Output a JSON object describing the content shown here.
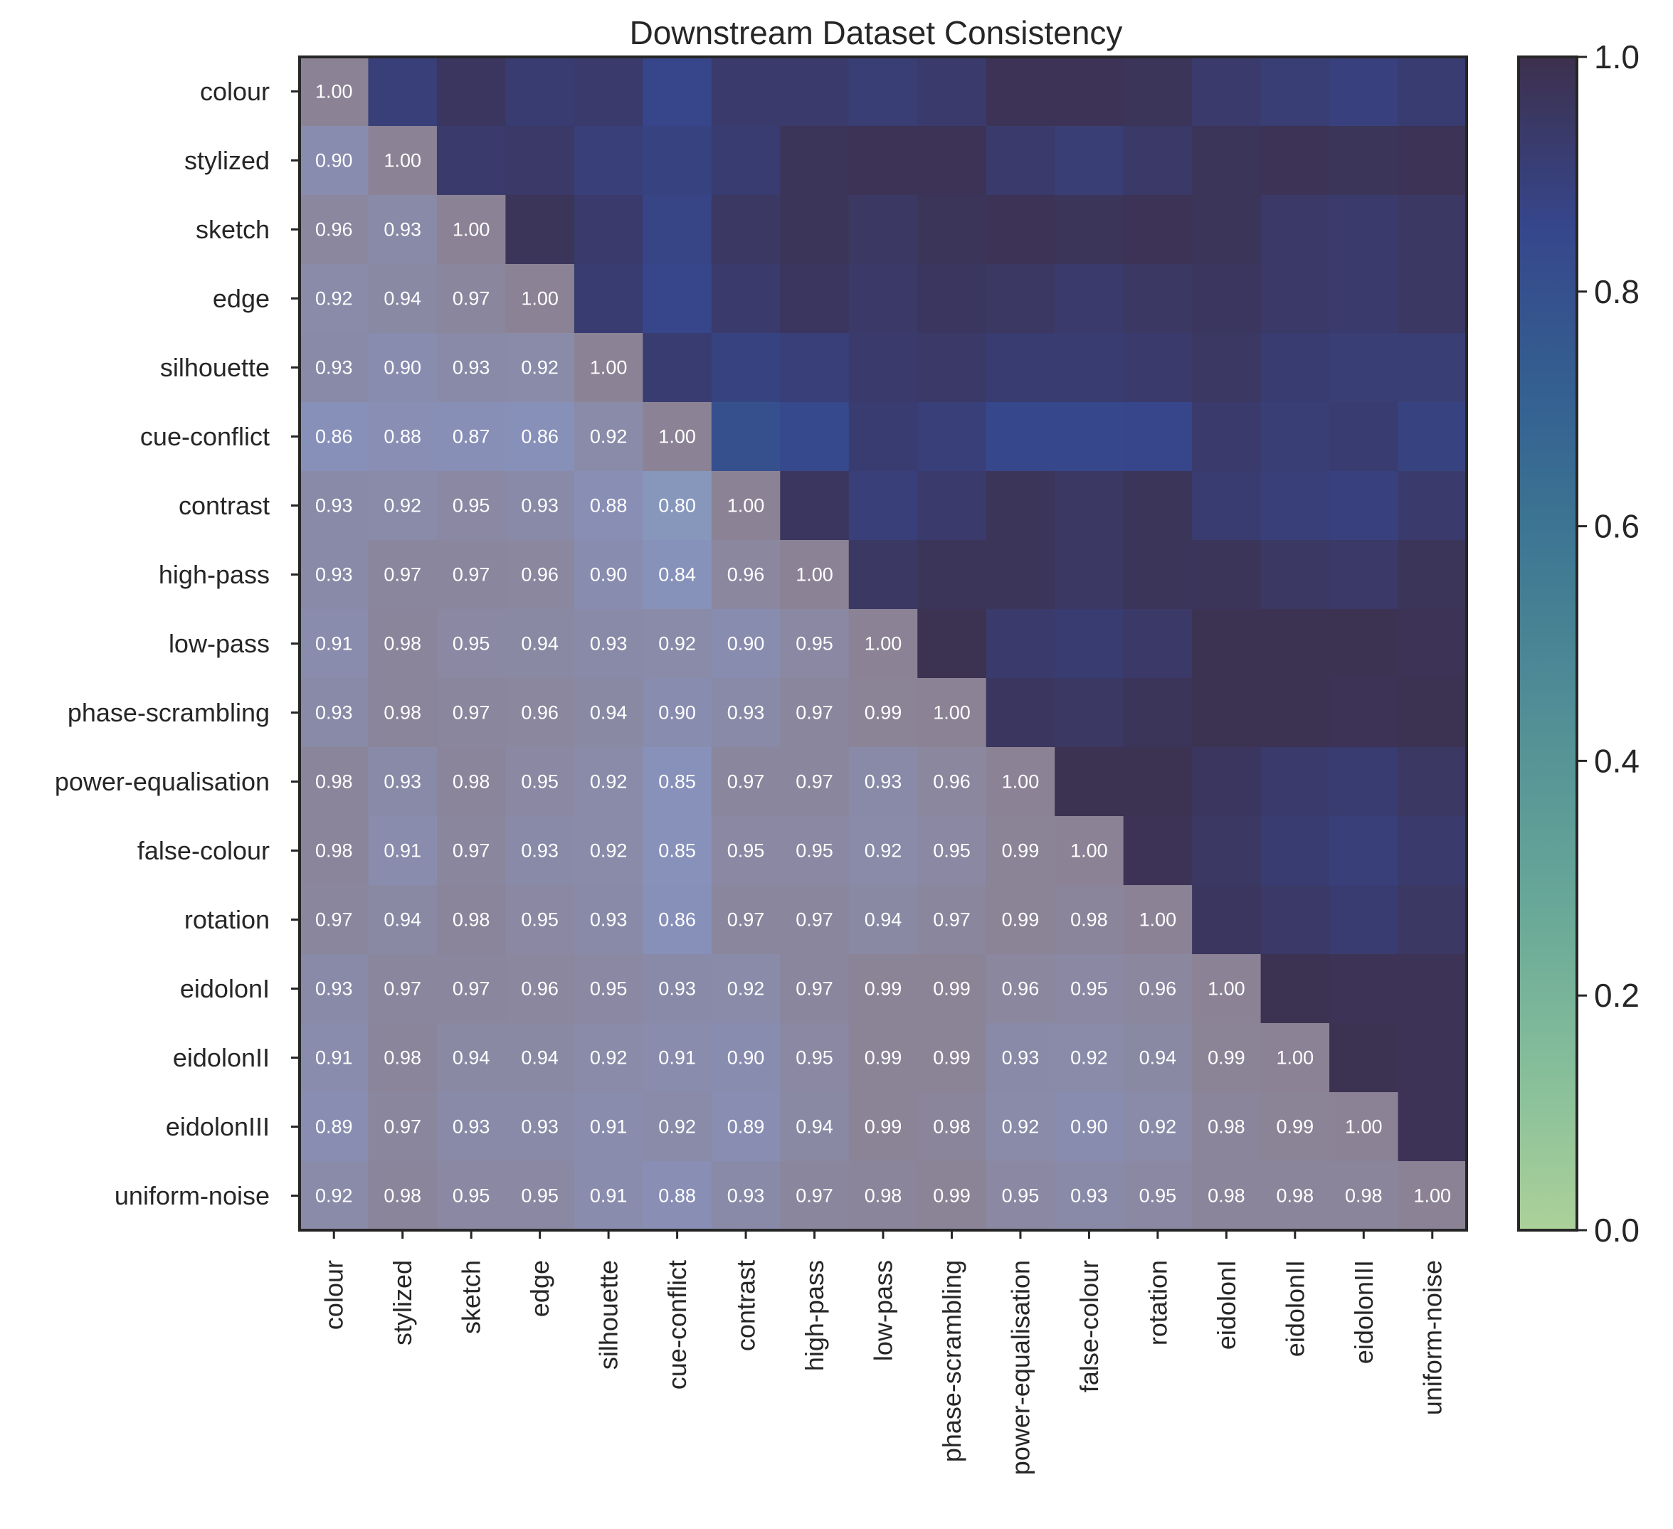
{
  "chart_data": {
    "type": "heatmap",
    "title": "Downstream Dataset Consistency",
    "xlabel": "",
    "ylabel": "",
    "labels": [
      "colour",
      "stylized",
      "sketch",
      "edge",
      "silhouette",
      "cue-conflict",
      "contrast",
      "high-pass",
      "low-pass",
      "phase-scrambling",
      "power-equalisation",
      "false-colour",
      "rotation",
      "eidolonI",
      "eidolonII",
      "eidolonIII",
      "uniform-noise"
    ],
    "lower_triangle_annotated": true,
    "value_format": "0.00",
    "values": [
      [
        1.0,
        0.9,
        0.96,
        0.92,
        0.93,
        0.86,
        0.93,
        0.93,
        0.91,
        0.93,
        0.98,
        0.98,
        0.97,
        0.93,
        0.91,
        0.89,
        0.92
      ],
      [
        0.9,
        1.0,
        0.93,
        0.94,
        0.9,
        0.88,
        0.92,
        0.97,
        0.98,
        0.98,
        0.93,
        0.91,
        0.94,
        0.97,
        0.98,
        0.97,
        0.98
      ],
      [
        0.96,
        0.93,
        1.0,
        0.97,
        0.93,
        0.87,
        0.95,
        0.97,
        0.95,
        0.97,
        0.98,
        0.97,
        0.98,
        0.97,
        0.94,
        0.93,
        0.95
      ],
      [
        0.92,
        0.94,
        0.97,
        1.0,
        0.92,
        0.86,
        0.93,
        0.96,
        0.94,
        0.96,
        0.95,
        0.93,
        0.95,
        0.96,
        0.94,
        0.93,
        0.95
      ],
      [
        0.93,
        0.9,
        0.93,
        0.92,
        1.0,
        0.92,
        0.88,
        0.9,
        0.93,
        0.94,
        0.92,
        0.92,
        0.93,
        0.95,
        0.92,
        0.91,
        0.91
      ],
      [
        0.86,
        0.88,
        0.87,
        0.86,
        0.92,
        1.0,
        0.8,
        0.84,
        0.92,
        0.9,
        0.85,
        0.85,
        0.86,
        0.93,
        0.91,
        0.92,
        0.88
      ],
      [
        0.93,
        0.92,
        0.95,
        0.93,
        0.88,
        0.8,
        1.0,
        0.96,
        0.9,
        0.93,
        0.97,
        0.95,
        0.97,
        0.92,
        0.9,
        0.89,
        0.93
      ],
      [
        0.93,
        0.97,
        0.97,
        0.96,
        0.9,
        0.84,
        0.96,
        1.0,
        0.95,
        0.97,
        0.97,
        0.95,
        0.97,
        0.97,
        0.95,
        0.94,
        0.97
      ],
      [
        0.91,
        0.98,
        0.95,
        0.94,
        0.93,
        0.92,
        0.9,
        0.95,
        1.0,
        0.99,
        0.93,
        0.92,
        0.94,
        0.99,
        0.99,
        0.99,
        0.98
      ],
      [
        0.93,
        0.98,
        0.97,
        0.96,
        0.94,
        0.9,
        0.93,
        0.97,
        0.99,
        1.0,
        0.96,
        0.95,
        0.97,
        0.99,
        0.99,
        0.98,
        0.99
      ],
      [
        0.98,
        0.93,
        0.98,
        0.95,
        0.92,
        0.85,
        0.97,
        0.97,
        0.93,
        0.96,
        1.0,
        0.99,
        0.99,
        0.96,
        0.93,
        0.92,
        0.95
      ],
      [
        0.98,
        0.91,
        0.97,
        0.93,
        0.92,
        0.85,
        0.95,
        0.95,
        0.92,
        0.95,
        0.99,
        1.0,
        0.98,
        0.95,
        0.92,
        0.9,
        0.93
      ],
      [
        0.97,
        0.94,
        0.98,
        0.95,
        0.93,
        0.86,
        0.97,
        0.97,
        0.94,
        0.97,
        0.99,
        0.98,
        1.0,
        0.96,
        0.94,
        0.92,
        0.95
      ],
      [
        0.93,
        0.97,
        0.97,
        0.96,
        0.95,
        0.93,
        0.92,
        0.97,
        0.99,
        0.99,
        0.96,
        0.95,
        0.96,
        1.0,
        0.99,
        0.98,
        0.98
      ],
      [
        0.91,
        0.98,
        0.94,
        0.94,
        0.92,
        0.91,
        0.9,
        0.95,
        0.99,
        0.99,
        0.93,
        0.92,
        0.94,
        0.99,
        1.0,
        0.99,
        0.98
      ],
      [
        0.89,
        0.97,
        0.93,
        0.93,
        0.91,
        0.92,
        0.89,
        0.94,
        0.99,
        0.98,
        0.92,
        0.9,
        0.92,
        0.98,
        0.99,
        1.0,
        0.98
      ],
      [
        0.92,
        0.98,
        0.95,
        0.95,
        0.91,
        0.88,
        0.93,
        0.97,
        0.98,
        0.99,
        0.95,
        0.93,
        0.95,
        0.98,
        0.98,
        0.98,
        1.0
      ]
    ],
    "colorbar": {
      "range": [
        0.0,
        1.0
      ],
      "ticks": [
        "0.0",
        "0.2",
        "0.4",
        "0.6",
        "0.8",
        "1.0"
      ],
      "colormap": "crest",
      "stops": [
        "#a5cd90",
        "#79b791",
        "#5a9e8f",
        "#44868d",
        "#2e6d8a",
        "#225287",
        "#253681",
        "#2c1e3e"
      ]
    },
    "upper_triangle_alpha": 0.92,
    "lower_triangle_alpha": 0.55
  }
}
